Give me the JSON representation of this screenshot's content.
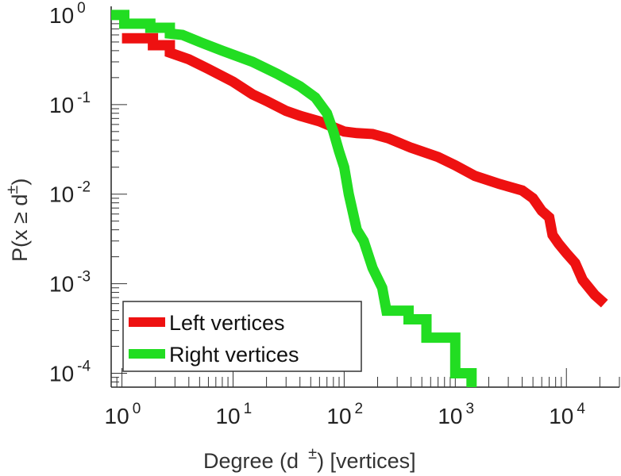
{
  "chart_data": {
    "type": "line",
    "title": "",
    "xlabel_parts": [
      "Degree (d",
      "±",
      ") [vertices]"
    ],
    "ylabel_parts": [
      "P(x ≥ d",
      "±",
      ")"
    ],
    "xscale": "log",
    "yscale": "log",
    "xlim": [
      0.8,
      30000
    ],
    "ylim": [
      7e-05,
      1.25
    ],
    "grid": false,
    "legend_position": "bottom-left",
    "x_ticks": [
      {
        "value": 1,
        "base": "10",
        "exp": "0"
      },
      {
        "value": 10,
        "base": "10",
        "exp": "1"
      },
      {
        "value": 100,
        "base": "10",
        "exp": "2"
      },
      {
        "value": 1000,
        "base": "10",
        "exp": "3"
      },
      {
        "value": 10000,
        "base": "10",
        "exp": "4"
      }
    ],
    "y_ticks": [
      {
        "value": 1,
        "base": "10",
        "exp": "0"
      },
      {
        "value": 0.1,
        "base": "10",
        "exp": "-1"
      },
      {
        "value": 0.01,
        "base": "10",
        "exp": "-2"
      },
      {
        "value": 0.001,
        "base": "10",
        "exp": "-3"
      },
      {
        "value": 0.0001,
        "base": "10",
        "exp": "-4"
      }
    ],
    "series": [
      {
        "name": "Left vertices",
        "color": "#ee1111",
        "points": [
          [
            1,
            0.55
          ],
          [
            1.9,
            0.55
          ],
          [
            1.9,
            0.46
          ],
          [
            2.7,
            0.46
          ],
          [
            2.7,
            0.38
          ],
          [
            4,
            0.32
          ],
          [
            6,
            0.25
          ],
          [
            10,
            0.18
          ],
          [
            15,
            0.13
          ],
          [
            20,
            0.11
          ],
          [
            30,
            0.085
          ],
          [
            40,
            0.075
          ],
          [
            60,
            0.065
          ],
          [
            80,
            0.056
          ],
          [
            100,
            0.05
          ],
          [
            130,
            0.048
          ],
          [
            180,
            0.047
          ],
          [
            250,
            0.042
          ],
          [
            400,
            0.033
          ],
          [
            700,
            0.026
          ],
          [
            1000,
            0.021
          ],
          [
            1500,
            0.016
          ],
          [
            2500,
            0.013
          ],
          [
            4000,
            0.011
          ],
          [
            5000,
            0.009
          ],
          [
            6000,
            0.0065
          ],
          [
            7000,
            0.0055
          ],
          [
            7500,
            0.0035
          ],
          [
            8500,
            0.0028
          ],
          [
            10000,
            0.0022
          ],
          [
            12000,
            0.0017
          ],
          [
            14000,
            0.0011
          ],
          [
            18000,
            0.00075
          ],
          [
            22000,
            0.0006
          ]
        ]
      },
      {
        "name": "Right vertices",
        "color": "#22dd22",
        "points": [
          [
            0.8,
            1.0
          ],
          [
            1.05,
            1.0
          ],
          [
            1.05,
            0.8
          ],
          [
            1.8,
            0.8
          ],
          [
            1.8,
            0.72
          ],
          [
            2.7,
            0.72
          ],
          [
            2.7,
            0.62
          ],
          [
            3.5,
            0.6
          ],
          [
            5,
            0.5
          ],
          [
            8,
            0.4
          ],
          [
            15,
            0.3
          ],
          [
            25,
            0.22
          ],
          [
            40,
            0.16
          ],
          [
            55,
            0.12
          ],
          [
            70,
            0.08
          ],
          [
            80,
            0.05
          ],
          [
            90,
            0.03
          ],
          [
            100,
            0.02
          ],
          [
            110,
            0.01
          ],
          [
            130,
            0.004
          ],
          [
            150,
            0.003
          ],
          [
            180,
            0.0015
          ],
          [
            220,
            0.0009
          ],
          [
            240,
            0.0005
          ],
          [
            380,
            0.0005
          ],
          [
            380,
            0.0004
          ],
          [
            550,
            0.0004
          ],
          [
            550,
            0.00025
          ],
          [
            1000,
            0.00025
          ],
          [
            1000,
            0.0001
          ],
          [
            1400,
            0.0001
          ],
          [
            1400,
            7e-05
          ]
        ]
      }
    ]
  }
}
